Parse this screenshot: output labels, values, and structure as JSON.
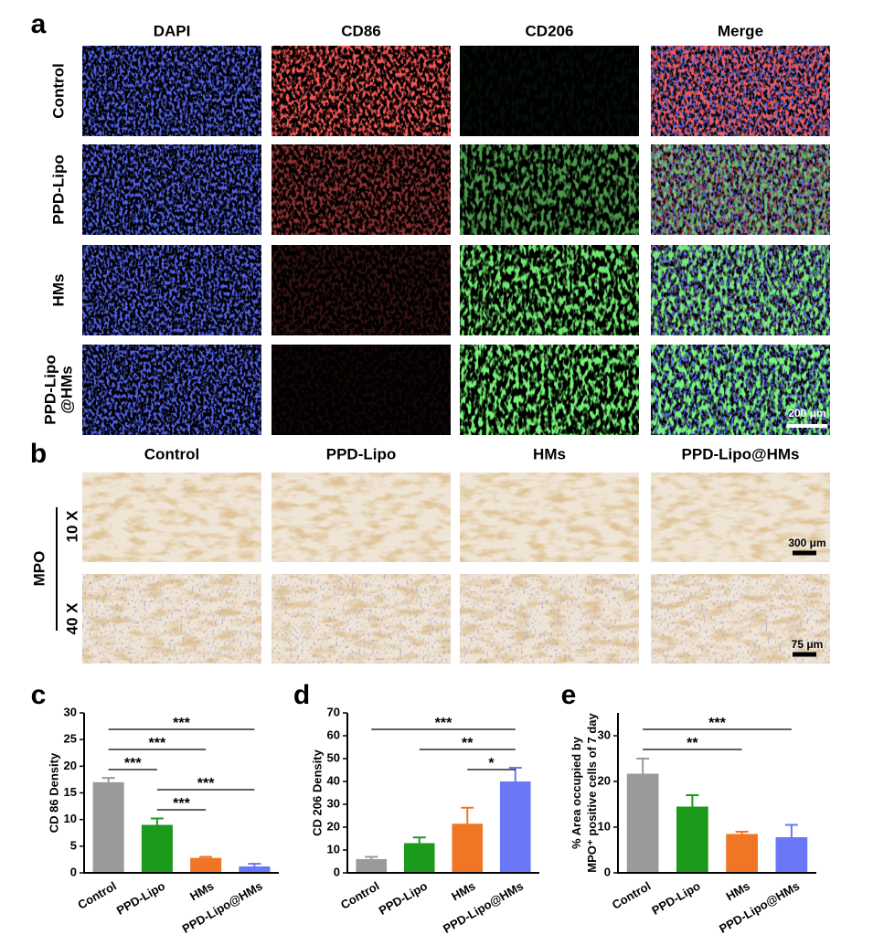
{
  "panel_labels": [
    "a",
    "b",
    "c",
    "d",
    "e"
  ],
  "figure_a": {
    "columns": [
      "DAPI",
      "CD86",
      "CD206",
      "Merge"
    ],
    "rows": [
      [
        "Control"
      ],
      [
        "PPD-Lipo"
      ],
      [
        "HMs"
      ],
      [
        "PPD-Lipo",
        "@HMs"
      ]
    ],
    "scale_bar": "200 μm"
  },
  "figure_b": {
    "columns": [
      "Control",
      "PPD-Lipo",
      "HMs",
      "PPD-Lipo@HMs"
    ],
    "stain": "MPO",
    "rows": [
      "10 X",
      "40 X"
    ],
    "scale_bars": [
      "300 μm",
      "75 μm"
    ]
  },
  "chart_data": [
    {
      "type": "bar",
      "y_label": [
        "CD 86 Density"
      ],
      "categories": [
        "Control",
        "PPD-Lipo",
        "HMs",
        "PPD-Lipo@HMs"
      ],
      "values": [
        17,
        9,
        2.8,
        1.2
      ],
      "errors": [
        0.8,
        1.2,
        0.2,
        0.5
      ],
      "colors": [
        "#9a9a9a",
        "#1c9a1c",
        "#f07626",
        "#6a78f8"
      ],
      "ylim": [
        0,
        30
      ],
      "yticks": [
        0,
        5,
        10,
        15,
        20,
        25,
        30
      ],
      "brackets": [
        {
          "label": "***",
          "from": "Control",
          "to": "PPD-Lipo@HMs"
        },
        {
          "label": "***",
          "from": "Control",
          "to": "HMs"
        },
        {
          "label": "***",
          "from": "Control",
          "to": "PPD-Lipo"
        },
        {
          "label": "***",
          "from": "PPD-Lipo",
          "to": "PPD-Lipo@HMs"
        },
        {
          "label": "***",
          "from": "PPD-Lipo",
          "to": "HMs"
        }
      ]
    },
    {
      "type": "bar",
      "y_label": [
        "CD 206 Density"
      ],
      "categories": [
        "Control",
        "PPD-Lipo",
        "HMs",
        "PPD-Lipo@HMs"
      ],
      "values": [
        6,
        13,
        21.5,
        40
      ],
      "errors": [
        1,
        2.5,
        7,
        6
      ],
      "colors": [
        "#9a9a9a",
        "#1c9a1c",
        "#f07626",
        "#6a78f8"
      ],
      "ylim": [
        0,
        70
      ],
      "yticks": [
        0,
        10,
        20,
        30,
        40,
        50,
        60,
        70
      ],
      "brackets": [
        {
          "label": "***",
          "from": "Control",
          "to": "PPD-Lipo@HMs"
        },
        {
          "label": "**",
          "from": "PPD-Lipo",
          "to": "PPD-Lipo@HMs"
        },
        {
          "label": "*",
          "from": "HMs",
          "to": "PPD-Lipo@HMs"
        }
      ]
    },
    {
      "type": "bar",
      "y_label": [
        "% Area occupied by",
        "MPO⁺ positive cells of 7 day"
      ],
      "categories": [
        "Control",
        "PPD-Lipo",
        "HMs",
        "PPD-Lipo@HMs"
      ],
      "values": [
        21.7,
        14.5,
        8.5,
        7.8
      ],
      "errors": [
        3.3,
        2.5,
        0.5,
        2.7
      ],
      "colors": [
        "#9a9a9a",
        "#1c9a1c",
        "#f07626",
        "#6a78f8"
      ],
      "ylim": [
        0,
        35
      ],
      "yticks": [
        0,
        10,
        20,
        30
      ],
      "brackets": [
        {
          "label": "***",
          "from": "Control",
          "to": "PPD-Lipo@HMs"
        },
        {
          "label": "**",
          "from": "Control",
          "to": "HMs"
        }
      ]
    }
  ]
}
